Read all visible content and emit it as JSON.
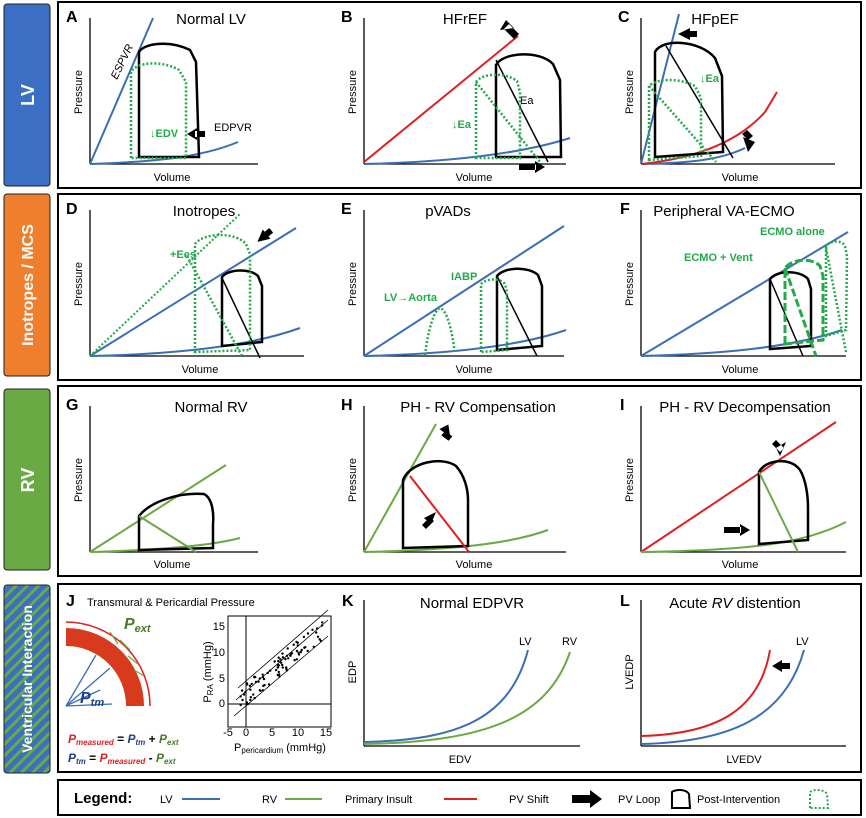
{
  "side_labels": {
    "lv": "LV",
    "mcs": "Inotropes / MCS",
    "rv": "RV",
    "vi": "Ventricular Interaction"
  },
  "axes": {
    "pressure": "Pressure",
    "volume": "Volume"
  },
  "panels": {
    "A": {
      "letter": "A",
      "title": "Normal LV",
      "espvr": "ESPVR",
      "edpvr": "EDPVR",
      "edv": "↓EDV"
    },
    "B": {
      "letter": "B",
      "title": "HFrEF",
      "ea": "Ea",
      "dea": "↓Ea"
    },
    "C": {
      "letter": "C",
      "title": "HFpEF",
      "dea": "↓Ea"
    },
    "D": {
      "letter": "D",
      "title": "Inotropes",
      "ees": "+Ees"
    },
    "E": {
      "letter": "E",
      "title": "pVADs",
      "lv_aorta": "LV→Aorta",
      "iabp": "IABP"
    },
    "F": {
      "letter": "F",
      "title": "Peripheral VA-ECMO",
      "ecmo_alone": "ECMO alone",
      "ecmo_vent": "ECMO + Vent"
    },
    "G": {
      "letter": "G",
      "title": "Normal RV"
    },
    "H": {
      "letter": "H",
      "title": "PH - RV Compensation"
    },
    "I": {
      "letter": "I",
      "title": "PH - RV Decompensation"
    },
    "J": {
      "letter": "J",
      "title": "Transmural & Pericardial Pressure",
      "p_ext": "P",
      "p_ext_sub": "ext",
      "p_tm": "P",
      "p_tm_sub": "tm",
      "eq1": {
        "a": "P",
        "a_sub": "measured",
        "b": " = ",
        "c": "P",
        "c_sub": "tm",
        "d": " + ",
        "e": "P",
        "e_sub": "ext"
      },
      "eq2": {
        "a": "P",
        "a_sub": "tm",
        "b": " = ",
        "c": "P",
        "c_sub": "measured",
        "d": " - ",
        "e": "P",
        "e_sub": "ext"
      },
      "ylabel": "P",
      "ylabel_sub": "RA",
      "ylabel_unit": " (mmHg)",
      "xlabel": "P",
      "xlabel_sub": "pericardium",
      "xlabel_unit": " (mmHg)",
      "xticks": [
        "-5",
        "0",
        "5",
        "10",
        "15"
      ],
      "yticks": [
        "15",
        "10",
        "5",
        "0"
      ]
    },
    "K": {
      "letter": "K",
      "title": "Normal EDPVR",
      "ylabel": "EDP",
      "xlabel": "EDV",
      "lv": "LV",
      "rv": "RV"
    },
    "L": {
      "letter": "L",
      "title_pre": "Acute ",
      "title_it": "RV",
      "title_post": " distention",
      "ylabel": "LVEDP",
      "xlabel": "LVEDV",
      "lv": "LV"
    }
  },
  "legend": {
    "title": "Legend:",
    "lv": "LV",
    "rv": "RV",
    "insult": "Primary Insult",
    "shift": "PV Shift",
    "loop": "PV Loop",
    "post": "Post-Intervention"
  },
  "colors": {
    "lv": "#3a6fb5",
    "rv": "#6aaa44",
    "insult": "#e02020",
    "post": "#22aa4a",
    "side_lv": "#3a6fc4",
    "side_mcs": "#f07f2d",
    "side_rv": "#6aaa44",
    "side_vi": "#3a6fc4"
  }
}
